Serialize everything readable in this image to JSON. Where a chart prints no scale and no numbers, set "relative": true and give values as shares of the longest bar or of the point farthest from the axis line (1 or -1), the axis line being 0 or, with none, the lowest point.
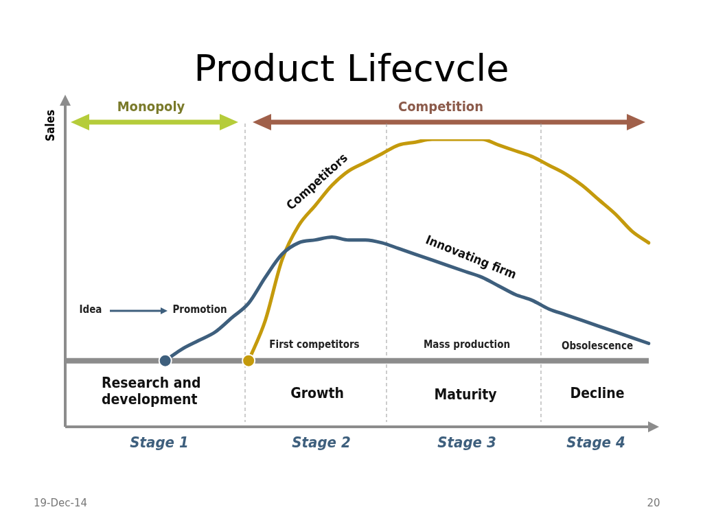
{
  "chart_data": {
    "type": "line",
    "title": "Product Lifecvcle",
    "ylabel": "Sales",
    "relative": true,
    "ref_lines": [
      {
        "axis": "y",
        "value": 0.23,
        "color": "#8c8c8c"
      }
    ],
    "categories": [
      null,
      null,
      null,
      null,
      null,
      null,
      null,
      null,
      null,
      null,
      null,
      null,
      null,
      null,
      null,
      null,
      null,
      null,
      null,
      null,
      null,
      null,
      null,
      null,
      null,
      null,
      null,
      null,
      null,
      null,
      null,
      null,
      null,
      null,
      null,
      null
    ],
    "series": [
      {
        "name": "Innovating firm",
        "color": "#3e5f7d",
        "values": [
          null,
          null,
          null,
          null,
          null,
          null,
          0.23,
          0.27,
          0.3,
          0.33,
          0.38,
          0.43,
          0.52,
          0.6,
          0.64,
          0.65,
          0.66,
          0.65,
          0.65,
          0.64,
          0.62,
          0.6,
          0.58,
          0.56,
          0.54,
          0.52,
          0.49,
          0.46,
          0.44,
          0.41,
          0.39,
          0.37,
          0.35,
          0.33,
          0.31,
          0.29
        ]
      },
      {
        "name": "Competitors",
        "color": "#c49a0c",
        "values": [
          null,
          null,
          null,
          null,
          null,
          null,
          null,
          null,
          null,
          null,
          null,
          0.23,
          0.37,
          0.58,
          0.7,
          0.77,
          0.84,
          0.89,
          0.92,
          0.95,
          0.98,
          0.99,
          1.0,
          1.0,
          1.0,
          1.0,
          0.98,
          0.96,
          0.94,
          0.91,
          0.88,
          0.84,
          0.79,
          0.74,
          0.68,
          0.64
        ]
      }
    ],
    "annotations": [
      "Monopoly",
      "Competition",
      "Idea",
      "Promotion",
      "First competitors",
      "Mass production",
      "Obsolescence",
      "Research and development",
      "Growth",
      "Maturity",
      "Decline",
      "Stage 1",
      "Stage 2",
      "Stage 3",
      "Stage 4",
      "19-Dec-14",
      "20"
    ]
  }
}
